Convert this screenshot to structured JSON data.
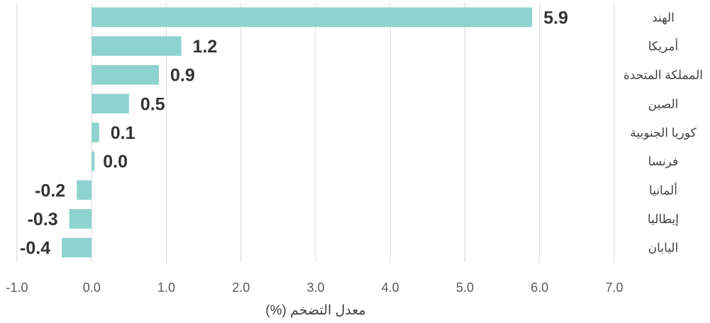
{
  "chart_data": {
    "type": "bar",
    "orientation": "horizontal",
    "title": "",
    "xlabel": "معدل التضخم (%)",
    "ylabel": "",
    "xlim": [
      -1.0,
      7.0
    ],
    "x_ticks": [
      "-1.0",
      "0.0",
      "1.0",
      "2.0",
      "3.0",
      "4.0",
      "5.0",
      "6.0",
      "7.0"
    ],
    "grid": "vertical",
    "bar_color": "#8dd3cf",
    "categories": [
      "الهند",
      "أمريكا",
      "المملكة المتحدة",
      "الصين",
      "كوريا الجنوبية",
      "فرنسا",
      "ألمانيا",
      "إيطاليا",
      "اليابان"
    ],
    "values": [
      5.9,
      1.2,
      0.9,
      0.5,
      0.1,
      0.0,
      -0.2,
      -0.3,
      -0.4
    ],
    "value_labels": [
      "5.9",
      "1.2",
      "0.9",
      "0.5",
      "0.1",
      "0.0",
      "-0.2",
      "-0.3",
      "-0.4"
    ]
  }
}
